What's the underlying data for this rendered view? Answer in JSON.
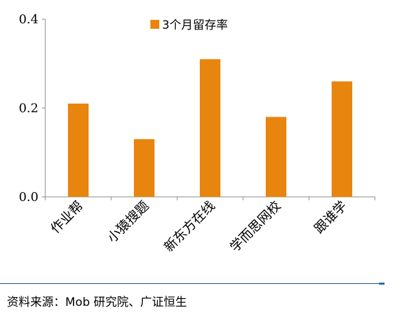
{
  "chart_data": {
    "type": "bar",
    "categories": [
      "作业帮",
      "小猿搜题",
      "新东方在线",
      "学而思网校",
      "跟谁学"
    ],
    "series": [
      {
        "name": "3个月留存率",
        "values": [
          0.21,
          0.13,
          0.31,
          0.18,
          0.26
        ]
      }
    ],
    "ylim": [
      0,
      0.4
    ],
    "yticks": [
      "0.0",
      "0.2",
      "0.4"
    ],
    "bar_color": "#E8850F",
    "legend_position": "top",
    "grid": false
  },
  "source": "资料来源：Mob 研究院、广证恒生"
}
